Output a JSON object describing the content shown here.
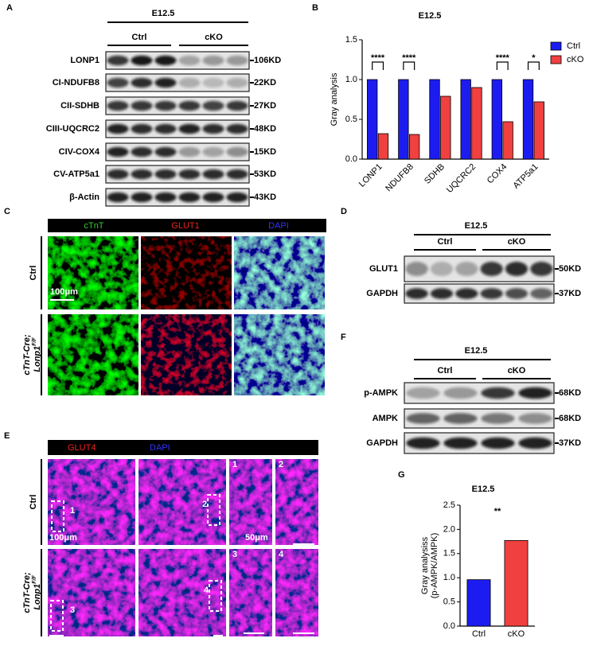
{
  "panels": {
    "A": {
      "letter": "A",
      "time": "E12.5",
      "groups": [
        "Ctrl",
        "cKO"
      ],
      "proteins": [
        "LONP1",
        "CI-NDUFB8",
        "CII-SDHB",
        "CIII-UQCRC2",
        "CIV-COX4",
        "CV-ATP5a1",
        "β-Actin"
      ],
      "sizes": [
        "106KD",
        "22KD",
        "27KD",
        "48KD",
        "15KD",
        "53KD",
        "43KD"
      ]
    },
    "B": {
      "letter": "B"
    },
    "C": {
      "letter": "C",
      "channels": [
        "cTnT",
        "GLUT1",
        "DAPI"
      ],
      "ctrl_label": "Ctrl",
      "cko_label": [
        "cTnT-Cre;",
        "Lonp1",
        "F/F"
      ],
      "scale_bar": "100μm"
    },
    "D": {
      "letter": "D",
      "time": "E12.5",
      "groups": [
        "Ctrl",
        "cKO"
      ],
      "proteins": [
        "GLUT1",
        "GAPDH"
      ],
      "sizes": [
        "50KD",
        "37KD"
      ]
    },
    "E": {
      "letter": "E",
      "channels": [
        "GLUT4",
        "DAPI"
      ],
      "insets": [
        "1",
        "2",
        "3",
        "4"
      ],
      "ctrl_label": "Ctrl",
      "cko_label": [
        "cTnT-Cre;",
        "Lonp1",
        "F/F"
      ],
      "scale_bars": [
        "100μm",
        "50μm"
      ]
    },
    "F": {
      "letter": "F",
      "time": "E12.5",
      "groups": [
        "Ctrl",
        "cKO"
      ],
      "proteins": [
        "p-AMPK",
        "AMPK",
        "GAPDH"
      ],
      "sizes": [
        "68KD",
        "68KD",
        "37KD"
      ]
    },
    "G": {
      "letter": "G"
    }
  },
  "chart_data": [
    {
      "type": "bar",
      "title": "E12.5",
      "y_label": "Gray analysis",
      "categories": [
        "LONP1",
        "NDUFB8",
        "SDHB",
        "UQCRC2",
        "COX4",
        "ATP5a1"
      ],
      "series": [
        {
          "name": "Ctrl",
          "color": "#1c1cf0",
          "values": [
            1,
            1,
            1,
            1,
            1,
            1
          ]
        },
        {
          "name": "cKO",
          "color": "#f04040",
          "values": [
            0.32,
            0.31,
            0.79,
            0.9,
            0.47,
            0.72
          ]
        }
      ],
      "annotations": [
        "****",
        "****",
        null,
        null,
        "****",
        "*"
      ],
      "ylim": [
        0,
        1.5
      ],
      "yticks": [
        {
          "value": 0,
          "label": "0.0"
        },
        {
          "value": 0.5,
          "label": "0.5"
        },
        {
          "value": 1,
          "label": "1.0"
        },
        {
          "value": 1.5,
          "label": "1.5"
        }
      ],
      "legend": "top-right"
    },
    {
      "type": "bar",
      "title": "E12.5",
      "y_label": [
        "Gray analysiss",
        "(p-AMPK/AMPK)"
      ],
      "categories": [
        "Ctrl",
        "cKO"
      ],
      "values": [
        0.96,
        1.77
      ],
      "colors": [
        "#1c1cf0",
        "#f04040"
      ],
      "annotation": "**",
      "ylim": [
        0,
        2.5
      ],
      "yticks": [
        {
          "value": 0,
          "label": "0.0"
        },
        {
          "value": 0.5,
          "label": "0.5"
        },
        {
          "value": 1,
          "label": "1.0"
        },
        {
          "value": 1.5,
          "label": "1.5"
        },
        {
          "value": 2,
          "label": "2.0"
        },
        {
          "value": 2.5,
          "label": "2.5"
        }
      ]
    }
  ]
}
